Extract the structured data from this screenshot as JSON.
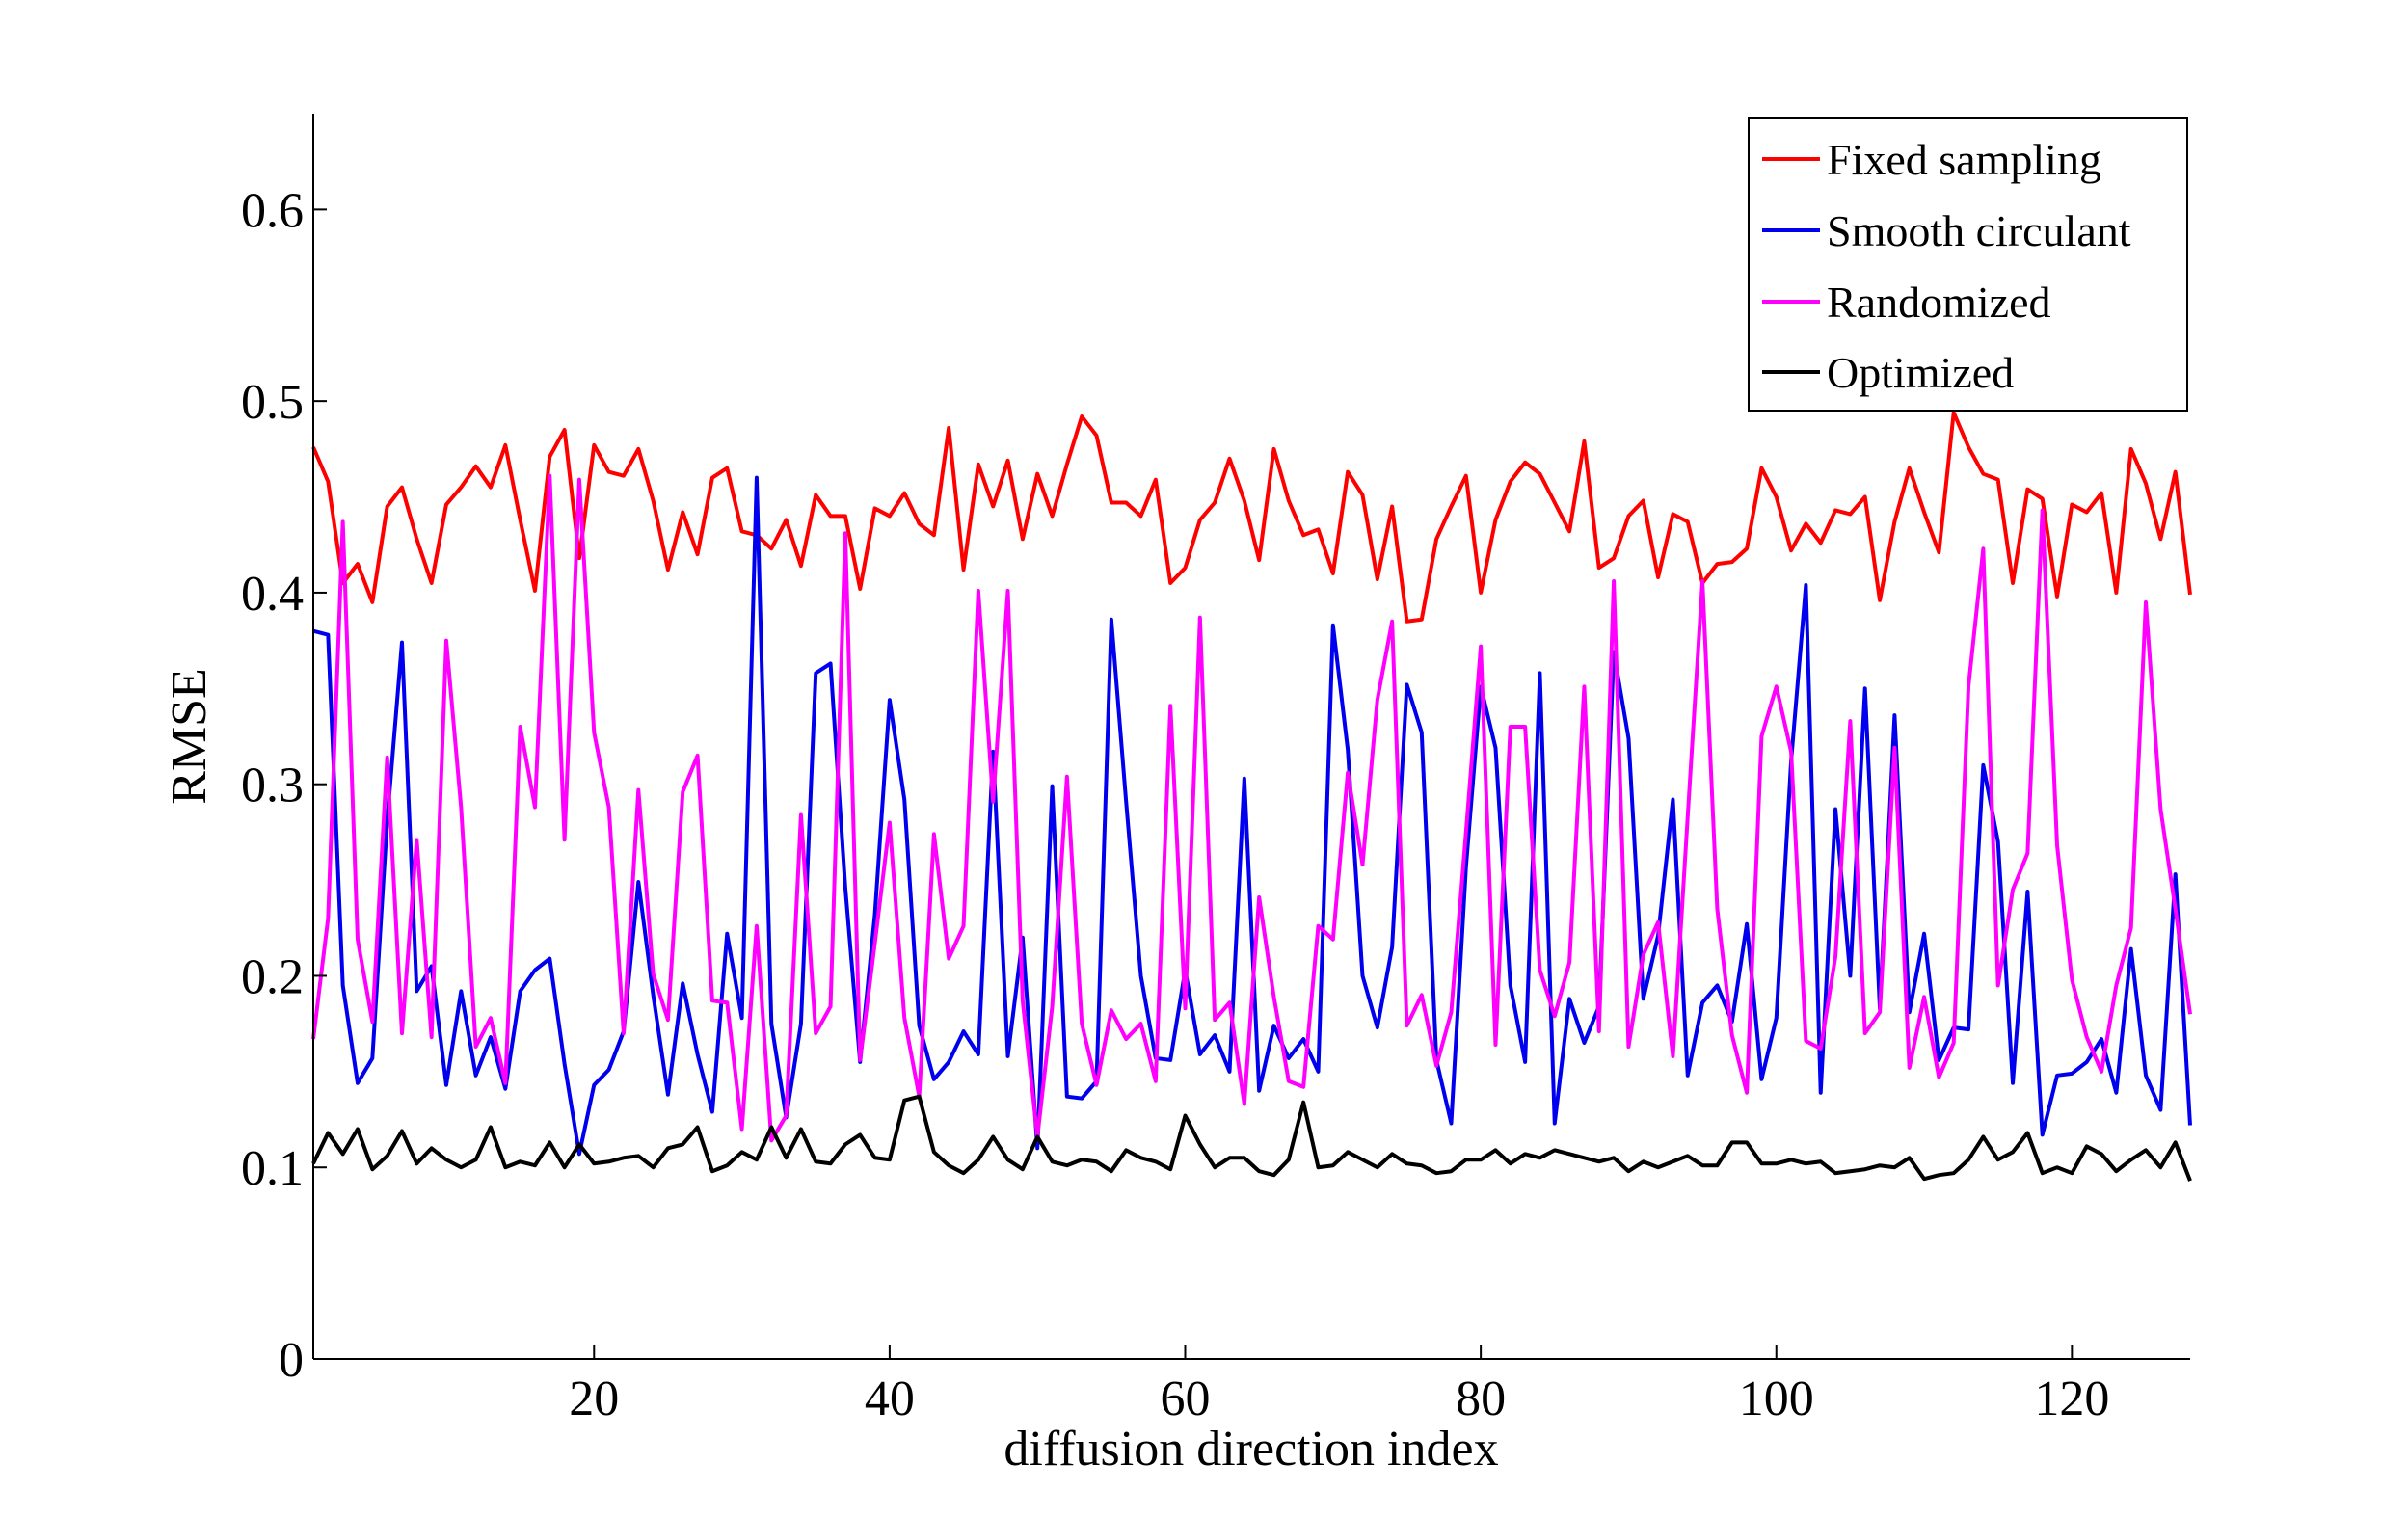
{
  "chart_data": {
    "type": "line",
    "title": "",
    "xlabel": "diffusion direction index",
    "ylabel": "RMSE",
    "xlim": [
      1,
      128
    ],
    "ylim": [
      0,
      0.65
    ],
    "xticks": [
      20,
      40,
      60,
      80,
      100,
      120
    ],
    "xtick_labels": [
      "20",
      "40",
      "60",
      "80",
      "100",
      "120"
    ],
    "yticks": [
      0,
      0.1,
      0.2,
      0.3,
      0.4,
      0.5,
      0.6
    ],
    "ytick_labels": [
      "0",
      "0.1",
      "0.2",
      "0.3",
      "0.4",
      "0.5",
      "0.6"
    ],
    "grid": false,
    "legend_position": "top-right",
    "x": [
      1,
      2,
      3,
      4,
      5,
      6,
      7,
      8,
      9,
      10,
      11,
      12,
      13,
      14,
      15,
      16,
      17,
      18,
      19,
      20,
      21,
      22,
      23,
      24,
      25,
      26,
      27,
      28,
      29,
      30,
      31,
      32,
      33,
      34,
      35,
      36,
      37,
      38,
      39,
      40,
      41,
      42,
      43,
      44,
      45,
      46,
      47,
      48,
      49,
      50,
      51,
      52,
      53,
      54,
      55,
      56,
      57,
      58,
      59,
      60,
      61,
      62,
      63,
      64,
      65,
      66,
      67,
      68,
      69,
      70,
      71,
      72,
      73,
      74,
      75,
      76,
      77,
      78,
      79,
      80,
      81,
      82,
      83,
      84,
      85,
      86,
      87,
      88,
      89,
      90,
      91,
      92,
      93,
      94,
      95,
      96,
      97,
      98,
      99,
      100,
      101,
      102,
      103,
      104,
      105,
      106,
      107,
      108,
      109,
      110,
      111,
      112,
      113,
      114,
      115,
      116,
      117,
      118,
      119,
      120,
      121,
      122,
      123,
      124,
      125,
      126,
      127,
      128
    ],
    "series": [
      {
        "name": "Fixed sampling",
        "color": "#ff0000",
        "values": [
          0.476,
          0.458,
          0.405,
          0.415,
          0.395,
          0.445,
          0.455,
          0.428,
          0.405,
          0.446,
          0.455,
          0.466,
          0.455,
          0.477,
          0.438,
          0.401,
          0.471,
          0.485,
          0.418,
          0.477,
          0.463,
          0.461,
          0.475,
          0.448,
          0.412,
          0.442,
          0.42,
          0.46,
          0.465,
          0.432,
          0.43,
          0.423,
          0.438,
          0.414,
          0.451,
          0.44,
          0.44,
          0.402,
          0.444,
          0.44,
          0.452,
          0.436,
          0.43,
          0.486,
          0.412,
          0.467,
          0.445,
          0.469,
          0.428,
          0.462,
          0.44,
          0.467,
          0.492,
          0.482,
          0.447,
          0.447,
          0.44,
          0.459,
          0.405,
          0.413,
          0.438,
          0.447,
          0.47,
          0.448,
          0.417,
          0.475,
          0.448,
          0.43,
          0.433,
          0.41,
          0.463,
          0.451,
          0.407,
          0.445,
          0.385,
          0.386,
          0.428,
          0.445,
          0.461,
          0.4,
          0.438,
          0.458,
          0.468,
          0.462,
          0.447,
          0.432,
          0.479,
          0.413,
          0.418,
          0.44,
          0.448,
          0.408,
          0.441,
          0.437,
          0.405,
          0.415,
          0.416,
          0.423,
          0.465,
          0.45,
          0.422,
          0.436,
          0.426,
          0.443,
          0.441,
          0.45,
          0.396,
          0.437,
          0.465,
          0.442,
          0.421,
          0.494,
          0.476,
          0.462,
          0.459,
          0.405,
          0.454,
          0.449,
          0.398,
          0.446,
          0.442,
          0.452,
          0.4,
          0.475,
          0.457,
          0.428,
          0.463,
          0.399
        ]
      },
      {
        "name": "Smooth circulant",
        "color": "#0000ee",
        "values": [
          0.38,
          0.378,
          0.195,
          0.144,
          0.157,
          0.281,
          0.374,
          0.192,
          0.205,
          0.143,
          0.192,
          0.148,
          0.168,
          0.141,
          0.192,
          0.203,
          0.209,
          0.154,
          0.107,
          0.143,
          0.151,
          0.171,
          0.249,
          0.19,
          0.138,
          0.196,
          0.159,
          0.129,
          0.222,
          0.178,
          0.46,
          0.175,
          0.126,
          0.175,
          0.358,
          0.363,
          0.246,
          0.155,
          0.232,
          0.344,
          0.292,
          0.174,
          0.146,
          0.155,
          0.171,
          0.159,
          0.317,
          0.158,
          0.22,
          0.11,
          0.299,
          0.137,
          0.136,
          0.145,
          0.386,
          0.291,
          0.2,
          0.157,
          0.156,
          0.203,
          0.159,
          0.169,
          0.15,
          0.303,
          0.14,
          0.174,
          0.157,
          0.167,
          0.15,
          0.383,
          0.318,
          0.2,
          0.173,
          0.215,
          0.352,
          0.327,
          0.156,
          0.123,
          0.257,
          0.351,
          0.319,
          0.195,
          0.155,
          0.358,
          0.123,
          0.188,
          0.165,
          0.184,
          0.369,
          0.324,
          0.188,
          0.221,
          0.292,
          0.148,
          0.186,
          0.195,
          0.176,
          0.227,
          0.146,
          0.178,
          0.312,
          0.404,
          0.139,
          0.287,
          0.2,
          0.35,
          0.183,
          0.336,
          0.181,
          0.222,
          0.156,
          0.173,
          0.172,
          0.31,
          0.27,
          0.144,
          0.244,
          0.117,
          0.148,
          0.149,
          0.155,
          0.167,
          0.139,
          0.214,
          0.148,
          0.13,
          0.253,
          0.122
        ]
      },
      {
        "name": "Randomized",
        "color": "#ff00ff",
        "values": [
          0.167,
          0.23,
          0.437,
          0.219,
          0.176,
          0.314,
          0.17,
          0.271,
          0.168,
          0.375,
          0.288,
          0.163,
          0.178,
          0.144,
          0.33,
          0.288,
          0.461,
          0.271,
          0.459,
          0.327,
          0.288,
          0.17,
          0.297,
          0.201,
          0.177,
          0.296,
          0.315,
          0.187,
          0.186,
          0.12,
          0.226,
          0.114,
          0.127,
          0.284,
          0.17,
          0.184,
          0.431,
          0.156,
          0.217,
          0.28,
          0.178,
          0.137,
          0.274,
          0.209,
          0.226,
          0.401,
          0.291,
          0.401,
          0.187,
          0.116,
          0.184,
          0.304,
          0.175,
          0.143,
          0.182,
          0.167,
          0.175,
          0.145,
          0.341,
          0.183,
          0.387,
          0.177,
          0.186,
          0.133,
          0.241,
          0.189,
          0.145,
          0.142,
          0.226,
          0.219,
          0.306,
          0.258,
          0.344,
          0.385,
          0.174,
          0.19,
          0.153,
          0.181,
          0.275,
          0.372,
          0.164,
          0.33,
          0.33,
          0.203,
          0.179,
          0.207,
          0.351,
          0.171,
          0.406,
          0.163,
          0.211,
          0.228,
          0.158,
          0.283,
          0.406,
          0.235,
          0.169,
          0.139,
          0.325,
          0.351,
          0.317,
          0.166,
          0.162,
          0.21,
          0.333,
          0.17,
          0.181,
          0.319,
          0.152,
          0.189,
          0.147,
          0.165,
          0.351,
          0.423,
          0.195,
          0.245,
          0.264,
          0.443,
          0.268,
          0.198,
          0.168,
          0.15,
          0.195,
          0.225,
          0.395,
          0.287,
          0.235,
          0.18
        ]
      },
      {
        "name": "Optimized",
        "color": "#000000",
        "values": [
          0.102,
          0.118,
          0.107,
          0.12,
          0.099,
          0.106,
          0.119,
          0.102,
          0.11,
          0.104,
          0.1,
          0.104,
          0.121,
          0.1,
          0.103,
          0.101,
          0.113,
          0.1,
          0.112,
          0.102,
          0.103,
          0.105,
          0.106,
          0.1,
          0.11,
          0.112,
          0.121,
          0.098,
          0.101,
          0.108,
          0.104,
          0.121,
          0.105,
          0.12,
          0.103,
          0.102,
          0.112,
          0.117,
          0.105,
          0.104,
          0.135,
          0.137,
          0.108,
          0.101,
          0.097,
          0.104,
          0.116,
          0.104,
          0.099,
          0.116,
          0.103,
          0.101,
          0.104,
          0.103,
          0.098,
          0.109,
          0.105,
          0.103,
          0.099,
          0.127,
          0.112,
          0.1,
          0.105,
          0.105,
          0.098,
          0.096,
          0.104,
          0.134,
          0.1,
          0.101,
          0.108,
          0.104,
          0.1,
          0.107,
          0.102,
          0.101,
          0.097,
          0.098,
          0.104,
          0.104,
          0.109,
          0.102,
          0.107,
          0.105,
          0.109,
          0.107,
          0.105,
          0.103,
          0.105,
          0.098,
          0.103,
          0.1,
          0.103,
          0.106,
          0.101,
          0.101,
          0.113,
          0.113,
          0.102,
          0.102,
          0.104,
          0.102,
          0.103,
          0.097,
          0.098,
          0.099,
          0.101,
          0.1,
          0.105,
          0.094,
          0.096,
          0.097,
          0.104,
          0.116,
          0.104,
          0.108,
          0.118,
          0.097,
          0.1,
          0.097,
          0.111,
          0.107,
          0.098,
          0.104,
          0.109,
          0.1,
          0.113,
          0.093
        ]
      }
    ]
  }
}
